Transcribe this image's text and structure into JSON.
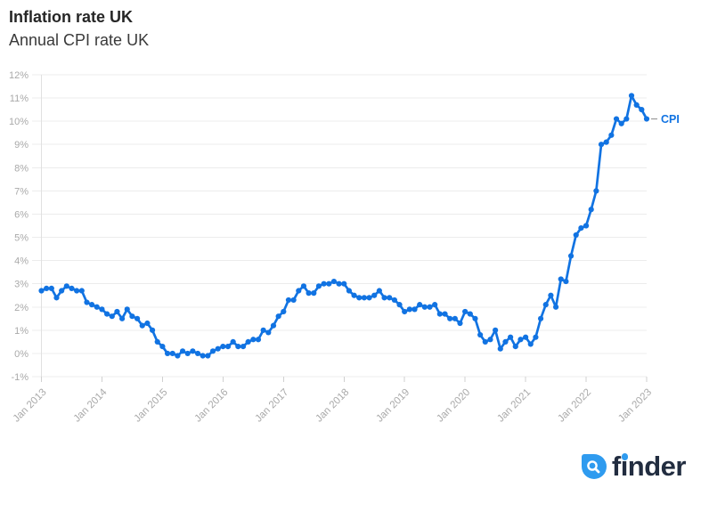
{
  "header": {
    "title": "Inflation rate UK",
    "subtitle": "Annual CPI rate UK"
  },
  "chart_data": {
    "type": "line",
    "title": "Inflation rate UK",
    "subtitle": "Annual CPI rate UK",
    "x_start": "Jan 2013",
    "x_frequency": "monthly",
    "x_tick_labels": [
      "Jan 2013",
      "Jan 2014",
      "Jan 2015",
      "Jan 2016",
      "Jan 2017",
      "Jan 2018",
      "Jan 2019",
      "Jan 2020",
      "Jan 2021",
      "Jan 2022",
      "Jan 2023"
    ],
    "y_ticks": [
      -1,
      0,
      1,
      2,
      3,
      4,
      5,
      6,
      7,
      8,
      9,
      10,
      11,
      12
    ],
    "y_tick_labels": [
      "-1%",
      "0%",
      "1%",
      "2%",
      "3%",
      "4%",
      "5%",
      "6%",
      "7%",
      "8%",
      "9%",
      "10%",
      "11%",
      "12%"
    ],
    "ylim": [
      -1,
      12
    ],
    "grid": "horizontal",
    "legend_position": "end-of-line",
    "series": [
      {
        "name": "CPI",
        "end_label": "CPI",
        "color": "#1173e2",
        "values": [
          2.7,
          2.8,
          2.8,
          2.4,
          2.7,
          2.9,
          2.8,
          2.7,
          2.7,
          2.2,
          2.1,
          2.0,
          1.9,
          1.7,
          1.6,
          1.8,
          1.5,
          1.9,
          1.6,
          1.5,
          1.2,
          1.3,
          1.0,
          0.5,
          0.3,
          0.0,
          0.0,
          -0.1,
          0.1,
          0.0,
          0.1,
          0.0,
          -0.1,
          -0.1,
          0.1,
          0.2,
          0.3,
          0.3,
          0.5,
          0.3,
          0.3,
          0.5,
          0.6,
          0.6,
          1.0,
          0.9,
          1.2,
          1.6,
          1.8,
          2.3,
          2.3,
          2.7,
          2.9,
          2.6,
          2.6,
          2.9,
          3.0,
          3.0,
          3.1,
          3.0,
          3.0,
          2.7,
          2.5,
          2.4,
          2.4,
          2.4,
          2.5,
          2.7,
          2.4,
          2.4,
          2.3,
          2.1,
          1.8,
          1.9,
          1.9,
          2.1,
          2.0,
          2.0,
          2.1,
          1.7,
          1.7,
          1.5,
          1.5,
          1.3,
          1.8,
          1.7,
          1.5,
          0.8,
          0.5,
          0.6,
          1.0,
          0.2,
          0.5,
          0.7,
          0.3,
          0.6,
          0.7,
          0.4,
          0.7,
          1.5,
          2.1,
          2.5,
          2.0,
          3.2,
          3.1,
          4.2,
          5.1,
          5.4,
          5.5,
          6.2,
          7.0,
          9.0,
          9.1,
          9.4,
          10.1,
          9.9,
          10.1,
          11.1,
          10.7,
          10.5,
          10.1
        ]
      }
    ]
  },
  "branding": {
    "logo_text": "finder"
  },
  "colors": {
    "line": "#1173e2",
    "grid": "#ececec",
    "axis": "#e0e0e0",
    "tick": "#d0d0d0",
    "tick_label": "#a9a9a9",
    "title": "#262626",
    "subtitle": "#3a3a3a",
    "brand_blue": "#2f9bef",
    "brand_navy": "#222d40",
    "end_dash": "#9a9a9a"
  }
}
